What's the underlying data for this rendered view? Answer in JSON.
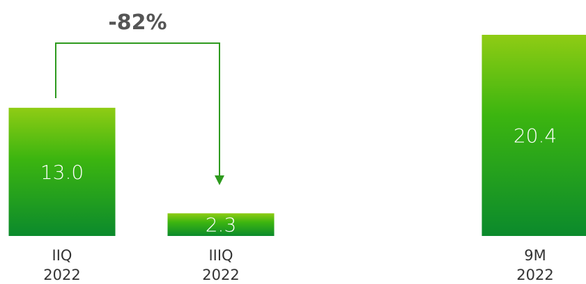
{
  "chart_data": {
    "type": "bar",
    "categories": [
      {
        "line1": "IIQ",
        "line2": "2022"
      },
      {
        "line1": "IIIQ",
        "line2": "2022"
      },
      {
        "line1": "9M",
        "line2": "2022"
      }
    ],
    "values": [
      13.0,
      2.3,
      20.4
    ],
    "value_labels": [
      "13.0",
      "2.3",
      "20.4"
    ],
    "ylim": [
      0,
      20.4
    ],
    "grid": false,
    "annotation": {
      "text": "-82%",
      "from_category": 0,
      "to_category": 1
    },
    "colors": {
      "bar_top": "#8fcc14",
      "bar_mid": "#3cb510",
      "bar_bottom": "#0b8a2c",
      "arrow": "#2e9a1e",
      "value_text": "#ffffff",
      "category_text": "#333333",
      "annotation_text": "#555555"
    }
  }
}
